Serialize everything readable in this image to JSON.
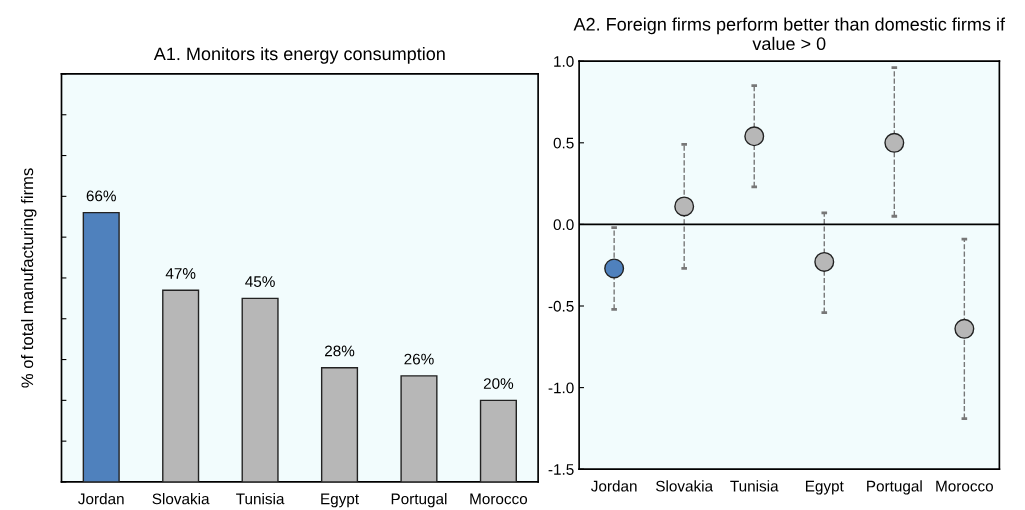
{
  "chart_data": [
    {
      "type": "bar",
      "title": "A1. Monitors its energy consumption",
      "ylabel": "% of total manufacturing firms",
      "categories": [
        "Jordan",
        "Slovakia",
        "Tunisia",
        "Egypt",
        "Portugal",
        "Morocco"
      ],
      "values": [
        66,
        47,
        45,
        28,
        26,
        20
      ],
      "colors": [
        "#4f81bd",
        "#b7b7b7",
        "#b7b7b7",
        "#b7b7b7",
        "#b7b7b7",
        "#b7b7b7"
      ],
      "value_labels": [
        "66%",
        "47%",
        "45%",
        "28%",
        "26%",
        "20%"
      ],
      "ylim": [
        0,
        100
      ],
      "yticks": [
        {
          "value": 0,
          "label": null
        },
        {
          "value": 10,
          "label": null
        },
        {
          "value": 20,
          "label": null
        },
        {
          "value": 30,
          "label": null
        },
        {
          "value": 40,
          "label": null
        },
        {
          "value": 50,
          "label": null
        },
        {
          "value": 60,
          "label": null
        },
        {
          "value": 70,
          "label": null
        },
        {
          "value": 80,
          "label": null
        },
        {
          "value": 90,
          "label": null
        },
        {
          "value": 100,
          "label": null
        }
      ],
      "tick_labels": "x",
      "grid": false
    },
    {
      "type": "scatter",
      "title": "A2. Foreign firms perform better than domestic firms if value > 0",
      "categories": [
        "Jordan",
        "Slovakia",
        "Tunisia",
        "Egypt",
        "Portugal",
        "Morocco"
      ],
      "values": [
        -0.27,
        0.11,
        0.54,
        -0.23,
        0.5,
        -0.64
      ],
      "errors": [
        [
          -0.52,
          -0.02
        ],
        [
          -0.27,
          0.49
        ],
        [
          0.23,
          0.85
        ],
        [
          -0.54,
          0.07
        ],
        [
          0.05,
          0.96
        ],
        [
          -1.19,
          -0.09
        ]
      ],
      "colors": [
        "#4f81bd",
        "#b7b7b7",
        "#b7b7b7",
        "#b7b7b7",
        "#b7b7b7",
        "#b7b7b7"
      ],
      "marker": "circle",
      "ylim": [
        -1.5,
        1.0
      ],
      "yticks": [
        {
          "value": -1.5,
          "label": "-1.5"
        },
        {
          "value": -1,
          "label": "-1.0"
        },
        {
          "value": -0.5,
          "label": "-0.5"
        },
        {
          "value": 0,
          "label": "0.0"
        },
        {
          "value": 0.5,
          "label": "0.5"
        },
        {
          "value": 1,
          "label": "1.0"
        }
      ],
      "ref_lines": [
        {
          "axis": "y",
          "value": 0,
          "color": "#000000"
        }
      ],
      "grid": false
    }
  ]
}
